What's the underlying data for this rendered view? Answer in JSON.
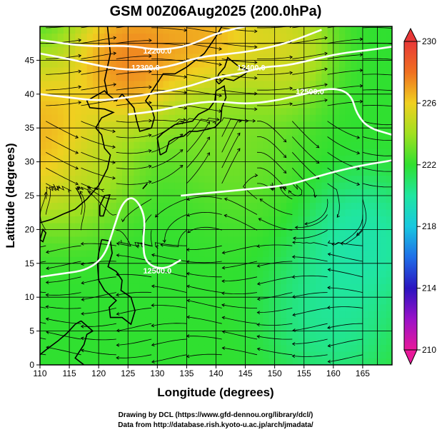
{
  "chart_data": {
    "type": "heatmap",
    "title": "GSM 00Z06Aug2025 (200.0hPa)",
    "xlabel": "Longitude (degrees)",
    "ylabel": "Latitude  (degrees)",
    "xlim": [
      110,
      170
    ],
    "ylim": [
      0,
      50
    ],
    "x_ticks": [
      110,
      115,
      120,
      125,
      130,
      135,
      140,
      145,
      150,
      155,
      160,
      165
    ],
    "y_ticks": [
      0,
      5,
      10,
      15,
      20,
      25,
      30,
      35,
      40,
      45
    ],
    "grid": true,
    "colorbar": {
      "min": 210,
      "max": 230,
      "ticks": [
        210,
        214,
        218,
        222,
        226,
        230
      ],
      "stops": [
        {
          "value": 210,
          "color": "#e8199a"
        },
        {
          "value": 212,
          "color": "#9a12c8"
        },
        {
          "value": 214,
          "color": "#2a14c0"
        },
        {
          "value": 216,
          "color": "#1f6ee8"
        },
        {
          "value": 218,
          "color": "#18c8e0"
        },
        {
          "value": 220,
          "color": "#20e6a0"
        },
        {
          "value": 222,
          "color": "#30e030"
        },
        {
          "value": 224,
          "color": "#a0e020"
        },
        {
          "value": 226,
          "color": "#f0d020"
        },
        {
          "value": 228,
          "color": "#f07020"
        },
        {
          "value": 230,
          "color": "#e83838"
        }
      ]
    },
    "temperature_field_hotspots": [
      {
        "lon": 110,
        "lat": 34,
        "value": 228.2,
        "spread": 9
      },
      {
        "lon": 126,
        "lat": 45,
        "value": 229.5,
        "spread": 8
      },
      {
        "lon": 138,
        "lat": 48,
        "value": 228.5,
        "spread": 7
      },
      {
        "lon": 150,
        "lat": 47,
        "value": 226.5,
        "spread": 7
      },
      {
        "lon": 140,
        "lat": 34,
        "value": 223.8,
        "spread": 10
      },
      {
        "lon": 120,
        "lat": 28,
        "value": 225.0,
        "spread": 7
      },
      {
        "lon": 165,
        "lat": 18,
        "value": 219.0,
        "spread": 7
      },
      {
        "lon": 160,
        "lat": 8,
        "value": 219.6,
        "spread": 8
      },
      {
        "lon": 130,
        "lat": 20,
        "value": 222.0,
        "spread": 10
      }
    ],
    "base_value": 222.0,
    "contours": [
      {
        "label": "12200.0",
        "label_lon": 130,
        "label_lat": 46,
        "points": [
          [
            110,
            48
          ],
          [
            118,
            47
          ],
          [
            125,
            47.2
          ],
          [
            130,
            46.5
          ],
          [
            135,
            47
          ],
          [
            140,
            49
          ],
          [
            145,
            50
          ]
        ]
      },
      {
        "label": "12300.0",
        "label_lon": 128,
        "label_lat": 43.5,
        "points": [
          [
            110,
            46
          ],
          [
            116,
            45
          ],
          [
            121,
            44
          ],
          [
            126,
            43.5
          ],
          [
            132,
            44
          ],
          [
            137,
            45.5
          ],
          [
            143,
            46
          ],
          [
            147,
            46.5
          ],
          [
            152,
            47.5
          ],
          [
            158,
            49.5
          ]
        ]
      },
      {
        "label": "12400.0",
        "label_lon": 146,
        "label_lat": 43.5,
        "points": [
          [
            110,
            40
          ],
          [
            115,
            39.5
          ],
          [
            120,
            39
          ],
          [
            125,
            39.5
          ],
          [
            130,
            40.2
          ],
          [
            135,
            41
          ],
          [
            140,
            42.5
          ],
          [
            144,
            43
          ],
          [
            148,
            44
          ],
          [
            152,
            44.2
          ],
          [
            156,
            45
          ],
          [
            161,
            46
          ],
          [
            166,
            46.5
          ],
          [
            170,
            47
          ]
        ]
      },
      {
        "label": "12500.0",
        "label_lon": 156,
        "label_lat": 40,
        "points": [
          [
            125,
            37
          ],
          [
            130,
            37.5
          ],
          [
            135,
            38.5
          ],
          [
            140,
            39
          ],
          [
            145,
            38.5
          ],
          [
            150,
            39
          ],
          [
            155,
            40
          ],
          [
            160,
            41
          ],
          [
            163,
            40
          ],
          [
            164,
            37
          ],
          [
            166,
            35
          ],
          [
            170,
            34
          ]
        ]
      },
      {
        "label": "",
        "label_lon": 0,
        "label_lat": 0,
        "points": [
          [
            134,
            25
          ],
          [
            140,
            25.5
          ],
          [
            146,
            26
          ],
          [
            152,
            26.5
          ],
          [
            156,
            27.5
          ],
          [
            160,
            28.5
          ],
          [
            165,
            29.5
          ],
          [
            170,
            30.2
          ]
        ]
      },
      {
        "label": "12500.0",
        "label_lon": 130,
        "label_lat": 13.5,
        "points": [
          [
            110,
            13
          ],
          [
            114,
            13.5
          ],
          [
            118,
            14
          ],
          [
            121,
            16
          ],
          [
            122.5,
            20
          ],
          [
            124,
            24
          ],
          [
            126,
            25
          ],
          [
            128,
            22
          ],
          [
            127.5,
            18
          ],
          [
            128,
            15
          ],
          [
            131,
            14
          ],
          [
            134,
            15.5
          ]
        ]
      }
    ],
    "annotations": [
      "Drawing by DCL (https://www.gfd-dennou.org/library/dcl/)",
      "Data from http://database.rish.kyoto-u.ac.jp/arch/jmadata/"
    ]
  }
}
